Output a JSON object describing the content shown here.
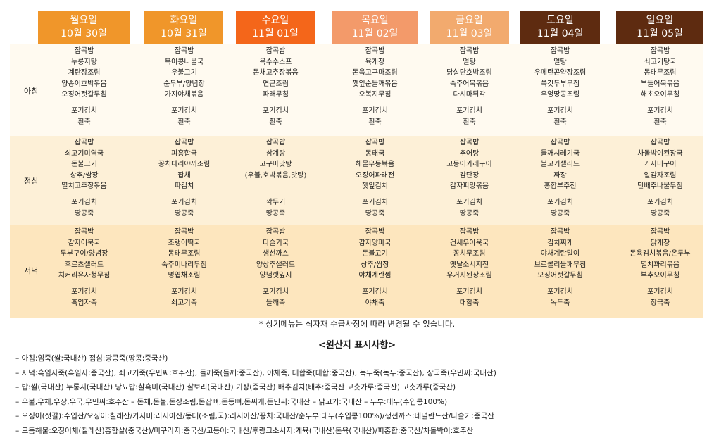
{
  "days": [
    {
      "day": "월요일",
      "date": "10월 30일",
      "color": "#f0962a"
    },
    {
      "day": "화요일",
      "date": "10월 31일",
      "color": "#f0962a"
    },
    {
      "day": "수요일",
      "date": "11월 01일",
      "color": "#f4661a"
    },
    {
      "day": "목요일",
      "date": "11월 02일",
      "color": "#f39a6a"
    },
    {
      "day": "금요일",
      "date": "11월 03일",
      "color": "#f2aa6e"
    },
    {
      "day": "토요일",
      "date": "11월 04일",
      "color": "#5e2b10"
    },
    {
      "day": "일요일",
      "date": "11월 05일",
      "color": "#5e2b10"
    }
  ],
  "meals": {
    "breakfast": "아침",
    "lunch": "점심",
    "dinner": "저녁"
  },
  "menu": {
    "breakfast": [
      [
        "잡곡밥",
        "누룽지탕",
        "계란장조림",
        "양송이호박볶음",
        "오징어젓갈무침",
        "",
        "포기김치",
        "흰죽"
      ],
      [
        "잡곡밥",
        "북어콩나물국",
        "우불고기",
        "순두부/양념장",
        "가지야채볶음",
        "",
        "포기김치",
        "흰죽"
      ],
      [
        "잡곡밥",
        "옥수수스프",
        "돈채고추장볶음",
        "연근조림",
        "파래무침",
        "",
        "포기김치",
        "흰죽"
      ],
      [
        "잡곡밥",
        "육개장",
        "돈육고구마조림",
        "깻잎순들깨볶음",
        "오복지무침",
        "",
        "포기김치",
        "흰죽"
      ],
      [
        "잡곡밥",
        "얼탕",
        "닭살단호박조림",
        "숙주어묵볶음",
        "다시마튀각",
        "",
        "포기김치",
        "흰죽"
      ],
      [
        "잡곡밥",
        "얼탕",
        "우메란곤약장조림",
        "쑥갓두부무침",
        "우엉땅콩조림",
        "",
        "포기김치",
        "흰죽"
      ],
      [
        "잡곡밥",
        "쇠고기탕국",
        "동태무조림",
        "부들어묵볶음",
        "해초오이무침",
        "",
        "포기김치",
        "흰죽"
      ]
    ],
    "lunch": [
      [
        "잡곡밥",
        "쇠고기미역국",
        "돈불고기",
        "상추/쌈장",
        "멸치고추장볶음",
        "",
        "포기김치",
        "땅콩죽"
      ],
      [
        "잡곡밥",
        "피홍합국",
        "꽁치데리야끼조림",
        "잡채",
        "파김치",
        "",
        "포기김치",
        "땅콩죽"
      ],
      [
        "잡곡밥",
        "삼계탕",
        "고구마맛탕",
        "(우불,호박볶음,맛탕)",
        "",
        "",
        "깍두기",
        "땅콩죽"
      ],
      [
        "잡곡밥",
        "동태국",
        "해물우동볶음",
        "오징어파래전",
        "깻잎김치",
        "",
        "포기김치",
        "땅콩죽"
      ],
      [
        "잡곡밥",
        "추어탕",
        "고등어카레구이",
        "감단장",
        "감자피망볶음",
        "",
        "포기김치",
        "땅콩죽"
      ],
      [
        "잡곡밥",
        "들깨시레기국",
        "불고기샐러드",
        "짜장",
        "홍합부추전",
        "",
        "포기김치",
        "땅콩죽"
      ],
      [
        "잡곡밥",
        "차돌박이된장국",
        "가자미구이",
        "알감자조림",
        "단배추나물무침",
        "",
        "포기김치",
        "땅콩죽"
      ]
    ],
    "dinner": [
      [
        "잡곡밥",
        "감자어묵국",
        "두부구이/양념장",
        "후르츠샐러드",
        "치커리유자청무침",
        "",
        "포기김치",
        "흑임자죽"
      ],
      [
        "잡곡밥",
        "조랭이떡국",
        "동태무조림",
        "숙주미나리무침",
        "명엽채조림",
        "",
        "포기김치",
        "쇠고기죽"
      ],
      [
        "잡곡밥",
        "다슬기국",
        "생선까스",
        "양상추샐러드",
        "양념깻잎지",
        "",
        "포기김치",
        "들깨죽"
      ],
      [
        "잡곡밥",
        "감자양파국",
        "돈불고기",
        "상추/쌈장",
        "야채계란찜",
        "",
        "포기김치",
        "야채죽"
      ],
      [
        "잡곡밥",
        "건새우아욱국",
        "꽁치무조림",
        "옛날소시지전",
        "우거지된장조림",
        "",
        "포기김치",
        "대합죽"
      ],
      [
        "잡곡밥",
        "김치찌개",
        "야채계란말이",
        "브로콜리들깨무침",
        "오징어젓갈무침",
        "",
        "포기김치",
        "녹두죽"
      ],
      [
        "잡곡밥",
        "닭개장",
        "돈육김치볶음/온두부",
        "멸치꽈리볶음",
        "부추오이무침",
        "",
        "포기김치",
        "장국죽"
      ]
    ]
  },
  "notice": "* 상기메뉴는 식자재 수급사정에 따라 변경될 수 있습니다.",
  "origin_title": "<원산지 표시사항>",
  "origin_lines": [
    "– 아침:임죽(쌀:국내산) 점심:땅콩죽(땅콩:중국산)",
    "– 저녁:흑임자죽(흑임자:중국산), 쇠고기죽(우민찌:호주산), 들깨죽(들깨:중국산), 야채죽, 대합죽(대합:중국산), 녹두죽(녹두:중국산), 장국죽(우민찌:국내산)",
    "– 밥:쌀(국내산) 누룽지(국내산) 당뇨밥:찰흑미(국내산) 찰보리(국내산) 기장(중국산) 배추김치(배추:중국산 고춧가루:중국산) 고춧가루(중국산)",
    "– 우불,우채,우장,우국,우민찌:호주산 – 돈채,돈불,돈장조림,돈잡뼈,돈등뼈,돈찌개,돈민찌:국내산 – 닭고기:국내산 – 두부:대두(수입콩100%)",
    "– 오징어(젓갈):수입산/오징어:칠레산/가자미:러시아산/동태(조림,국):러시아산/꽁치:국내산/순두부:대두(수입콩100%)/생선까스:네덜란드산/다슬기:중국산",
    "– 모듬해물:오징어채(칠레산)홍합살(중국산)/미꾸라지:중국산/고등어:국내산/후랑크소시지:계육(국내산)돈육(국내산)/피홍합:중국산/차돌박이:호주산"
  ]
}
